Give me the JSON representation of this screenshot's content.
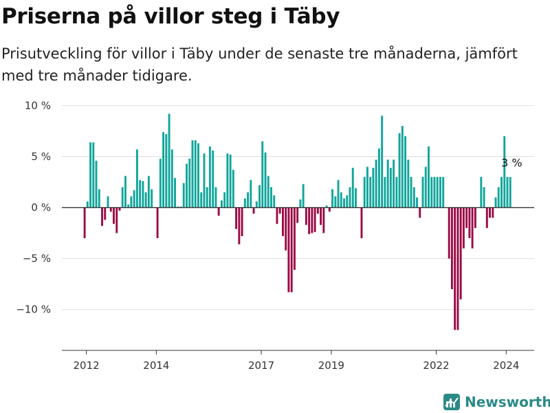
{
  "title": "Priserna på villor steg i Täby",
  "subtitle": "Prisutveckling för villor i Täby under de senaste tre månaderna, jämfört med tre månader tidigare.",
  "brand": "Newsworthy",
  "colors": {
    "positive": "#10a59b",
    "negative": "#9a0a45",
    "grid": "#dddddd",
    "axis": "#333333",
    "brand": "#2a8a86"
  },
  "chart_data": {
    "type": "bar",
    "title": "Priserna på villor steg i Täby",
    "xlabel": "",
    "ylabel": "",
    "ylim": [
      -14,
      10.5
    ],
    "yticks": [
      10,
      5,
      0,
      -5,
      -10
    ],
    "ytick_labels": [
      "10 %",
      "5 %",
      "0 %",
      "−5 %",
      "−10 %"
    ],
    "xticks": [
      2012,
      2014,
      2017,
      2019,
      2022,
      2024
    ],
    "xlim": [
      2011.3,
      2024.8
    ],
    "grid": true,
    "legend": "none",
    "annotation": {
      "x": 2024.1,
      "y": 3,
      "text": "3 %"
    },
    "x": [
      2011.95,
      2012.033,
      2012.117,
      2012.2,
      2012.283,
      2012.367,
      2012.45,
      2012.533,
      2012.617,
      2012.7,
      2012.783,
      2012.867,
      2012.95,
      2013.033,
      2013.117,
      2013.2,
      2013.283,
      2013.367,
      2013.45,
      2013.533,
      2013.617,
      2013.7,
      2013.783,
      2013.867,
      2013.95,
      2014.033,
      2014.117,
      2014.2,
      2014.283,
      2014.367,
      2014.45,
      2014.533,
      2014.617,
      2014.7,
      2014.783,
      2014.867,
      2014.95,
      2015.033,
      2015.117,
      2015.2,
      2015.283,
      2015.367,
      2015.45,
      2015.533,
      2015.617,
      2015.7,
      2015.783,
      2015.867,
      2015.95,
      2016.033,
      2016.117,
      2016.2,
      2016.283,
      2016.367,
      2016.45,
      2016.533,
      2016.617,
      2016.7,
      2016.783,
      2016.867,
      2016.95,
      2017.033,
      2017.117,
      2017.2,
      2017.283,
      2017.367,
      2017.45,
      2017.533,
      2017.617,
      2017.7,
      2017.783,
      2017.867,
      2017.95,
      2018.033,
      2018.117,
      2018.2,
      2018.283,
      2018.367,
      2018.45,
      2018.533,
      2018.617,
      2018.7,
      2018.783,
      2018.867,
      2018.95,
      2019.033,
      2019.117,
      2019.2,
      2019.283,
      2019.367,
      2019.45,
      2019.533,
      2019.617,
      2019.7,
      2019.783,
      2019.867,
      2019.95,
      2020.033,
      2020.117,
      2020.2,
      2020.283,
      2020.367,
      2020.45,
      2020.533,
      2020.617,
      2020.7,
      2020.783,
      2020.867,
      2020.95,
      2021.033,
      2021.117,
      2021.2,
      2021.283,
      2021.367,
      2021.45,
      2021.533,
      2021.617,
      2021.7,
      2021.783,
      2021.867,
      2021.95,
      2022.033,
      2022.117,
      2022.2,
      2022.283,
      2022.367,
      2022.45,
      2022.533,
      2022.617,
      2022.7,
      2022.783,
      2022.867,
      2022.95,
      2023.033,
      2023.117,
      2023.2,
      2023.283,
      2023.367,
      2023.45,
      2023.533,
      2023.617,
      2023.7,
      2023.783,
      2023.867,
      2023.95,
      2024.033,
      2024.117,
      2024.2
    ],
    "values": [
      -3.0,
      0.6,
      6.4,
      6.4,
      4.6,
      1.8,
      -1.8,
      -1.2,
      1.1,
      -0.4,
      -1.6,
      -2.5,
      -0.3,
      2.0,
      3.1,
      0.3,
      1.1,
      1.7,
      5.7,
      2.7,
      2.6,
      1.5,
      3.1,
      1.8,
      0,
      -3.0,
      4.8,
      7.4,
      7.2,
      9.2,
      5.7,
      2.9,
      0.1,
      0.1,
      2.4,
      4.3,
      4.8,
      6.6,
      6.6,
      6.3,
      1.5,
      5.3,
      2.0,
      6.0,
      5.6,
      2.0,
      -0.8,
      0.7,
      1.5,
      5.3,
      5.2,
      3.7,
      -2.1,
      -3.6,
      -2.8,
      0.9,
      1.5,
      2.7,
      -0.6,
      0.6,
      2.2,
      6.5,
      5.4,
      3.1,
      2.0,
      1.2,
      -1.6,
      -0.6,
      -2.8,
      -4.2,
      -8.3,
      -8.3,
      -6.1,
      -1.5,
      0.8,
      2.3,
      -1.7,
      -2.6,
      -2.5,
      -2.4,
      -0.6,
      -1.7,
      -2.5,
      0.2,
      -0.4,
      1.8,
      1.1,
      2.7,
      1.5,
      0.9,
      1.2,
      2.0,
      3.9,
      1.9,
      0,
      -3.0,
      3.0,
      4.0,
      3.0,
      3.9,
      4.7,
      5.8,
      9.0,
      3.0,
      4.7,
      3.9,
      4.7,
      3.0,
      7.3,
      8.0,
      7.0,
      4.7,
      3.0,
      2.0,
      1.0,
      -1.0,
      3.0,
      4.0,
      6.0,
      3.0,
      3.0,
      3.0,
      3.0,
      3.0,
      0,
      -5.0,
      -8.0,
      -12.0,
      -12.0,
      -9.0,
      -4.0,
      -2.0,
      -3.0,
      -4.0,
      -2.0,
      0,
      3.0,
      2.0,
      -2.0,
      -1.0,
      -1.0,
      1.0,
      2.0,
      3.0,
      7.0,
      3.0,
      3.0,
      0
    ]
  }
}
